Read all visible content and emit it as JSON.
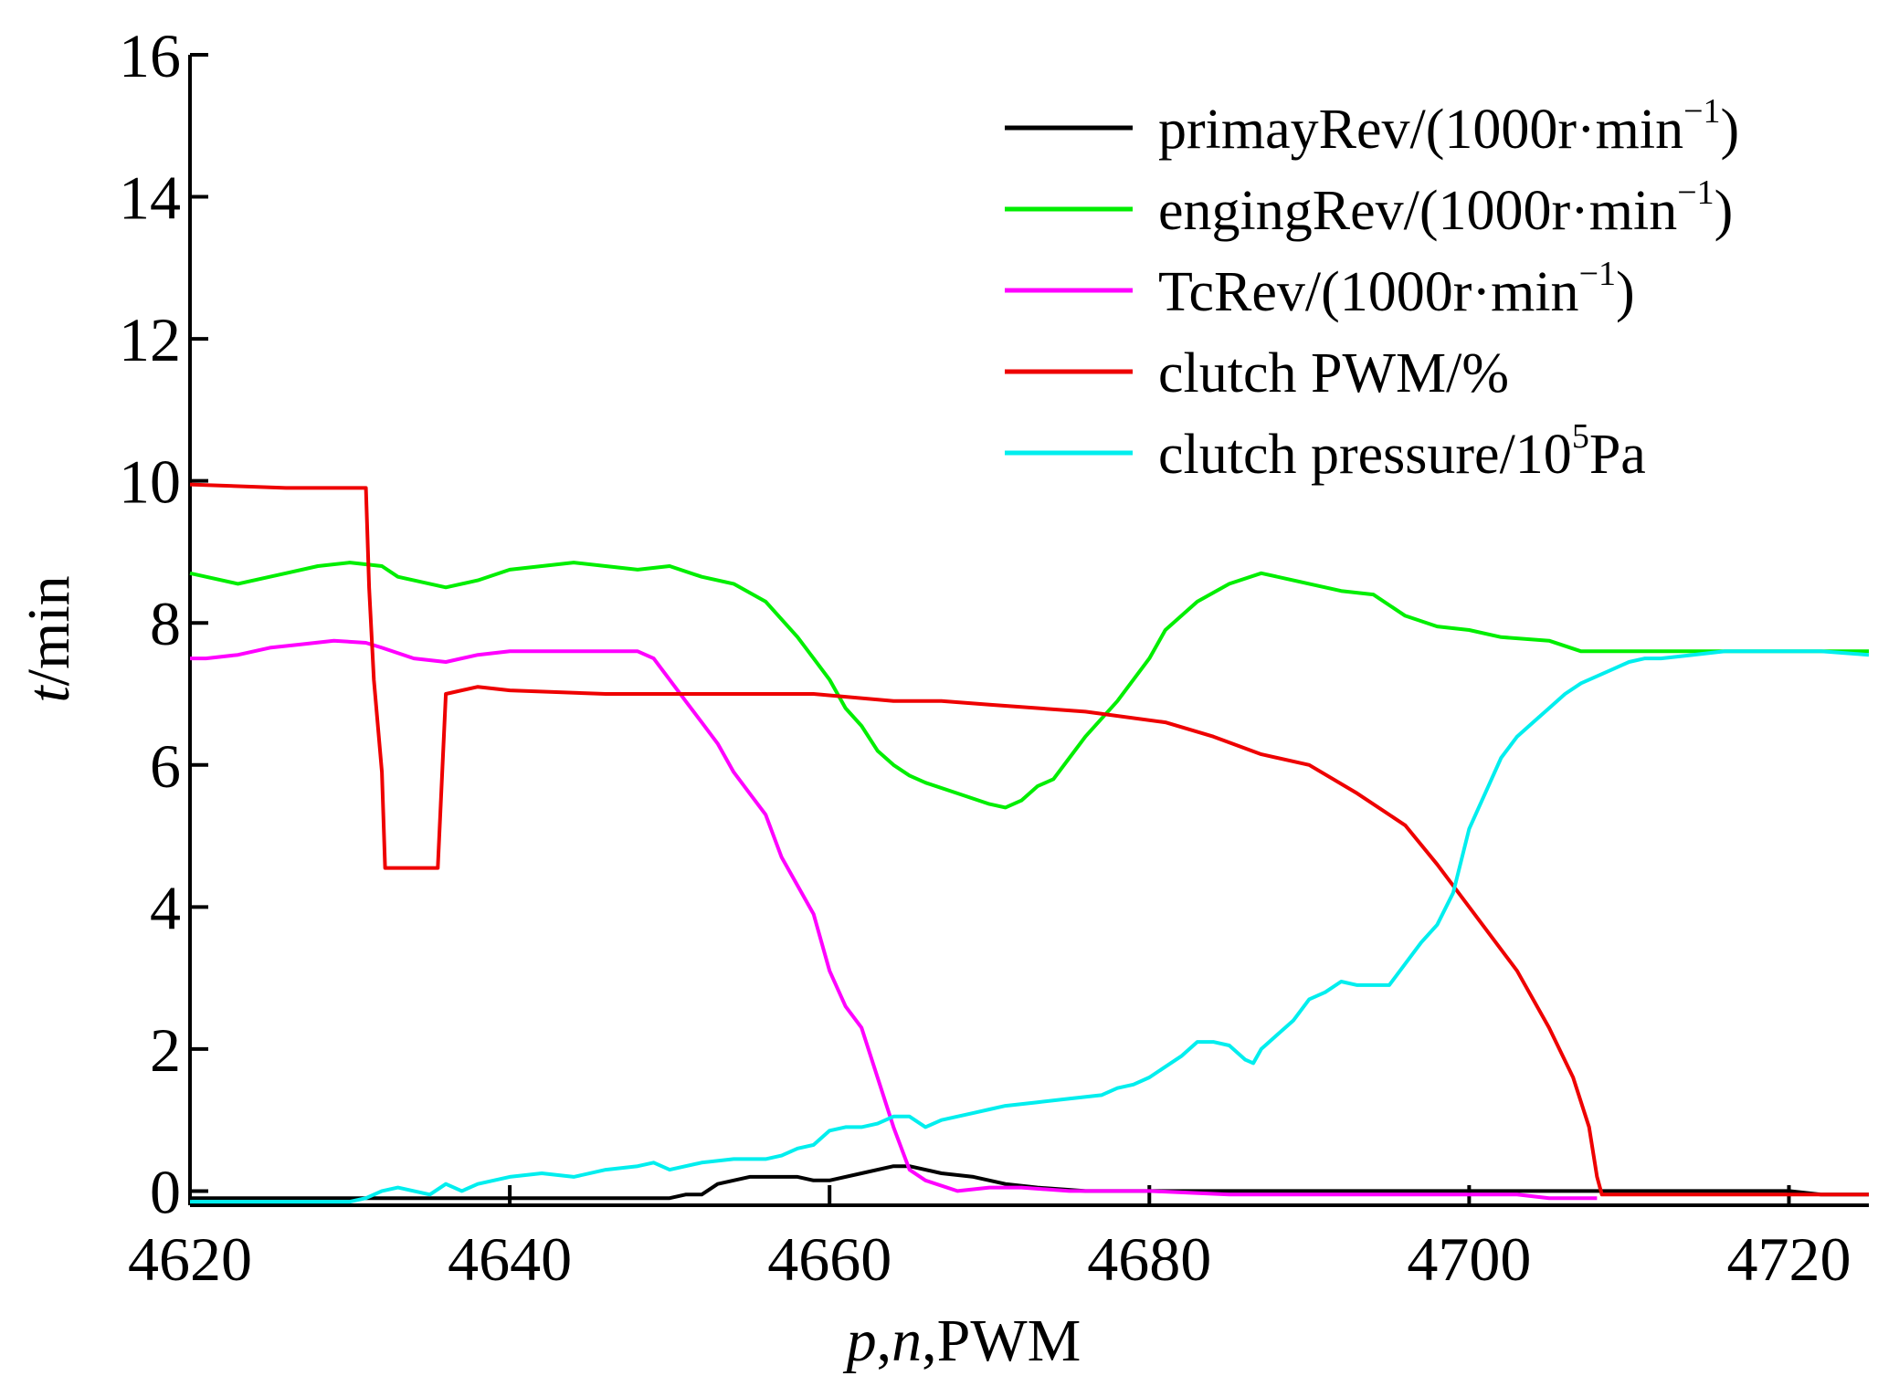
{
  "chart_data": {
    "type": "line",
    "title": "",
    "xlabel": "p,n,PWM",
    "ylabel": "t/min",
    "xlabel_parts": {
      "p": "p",
      "sep1": ",",
      "n": "n",
      "sep2": ",",
      "rest": "PWM"
    },
    "ylabel_parts": {
      "t": "t",
      "rest": "/min"
    },
    "xlim": [
      4620,
      4725
    ],
    "ylim": [
      -0.2,
      16
    ],
    "xticks": [
      4620,
      4640,
      4660,
      4680,
      4700,
      4720
    ],
    "yticks": [
      0,
      2,
      4,
      6,
      8,
      10,
      12,
      14,
      16
    ],
    "legend_position": "top-right",
    "series": [
      {
        "name": "primayRev/(1000r·min−1)",
        "legend": {
          "prefix": "primayRev/(1000r·min",
          "sup": "−1",
          "suffix": ")"
        },
        "color": "#000000",
        "points": [
          [
            4620,
            -0.1
          ],
          [
            4650,
            -0.1
          ],
          [
            4651,
            -0.05
          ],
          [
            4652,
            -0.05
          ],
          [
            4653,
            0.1
          ],
          [
            4655,
            0.2
          ],
          [
            4658,
            0.2
          ],
          [
            4659,
            0.15
          ],
          [
            4660,
            0.15
          ],
          [
            4662,
            0.25
          ],
          [
            4664,
            0.35
          ],
          [
            4665,
            0.35
          ],
          [
            4667,
            0.25
          ],
          [
            4669,
            0.2
          ],
          [
            4671,
            0.1
          ],
          [
            4673,
            0.05
          ],
          [
            4676,
            0.0
          ],
          [
            4720,
            0.0
          ],
          [
            4722,
            -0.05
          ],
          [
            4725,
            -0.05
          ]
        ]
      },
      {
        "name": "engingRev/(1000r·min−1)",
        "legend": {
          "prefix": "engingRev/(1000r·min",
          "sup": "−1",
          "suffix": ")"
        },
        "color": "#00ee00",
        "points": [
          [
            4620,
            8.7
          ],
          [
            4623,
            8.55
          ],
          [
            4626,
            8.7
          ],
          [
            4628,
            8.8
          ],
          [
            4630,
            8.85
          ],
          [
            4632,
            8.8
          ],
          [
            4633,
            8.65
          ],
          [
            4634,
            8.6
          ],
          [
            4636,
            8.5
          ],
          [
            4638,
            8.6
          ],
          [
            4640,
            8.75
          ],
          [
            4642,
            8.8
          ],
          [
            4644,
            8.85
          ],
          [
            4646,
            8.8
          ],
          [
            4648,
            8.75
          ],
          [
            4650,
            8.8
          ],
          [
            4652,
            8.65
          ],
          [
            4654,
            8.55
          ],
          [
            4656,
            8.3
          ],
          [
            4658,
            7.8
          ],
          [
            4659,
            7.5
          ],
          [
            4660,
            7.2
          ],
          [
            4661,
            6.8
          ],
          [
            4662,
            6.55
          ],
          [
            4663,
            6.2
          ],
          [
            4664,
            6.0
          ],
          [
            4665,
            5.85
          ],
          [
            4666,
            5.75
          ],
          [
            4668,
            5.6
          ],
          [
            4670,
            5.45
          ],
          [
            4671,
            5.4
          ],
          [
            4672,
            5.5
          ],
          [
            4673,
            5.7
          ],
          [
            4674,
            5.8
          ],
          [
            4675,
            6.1
          ],
          [
            4676,
            6.4
          ],
          [
            4678,
            6.9
          ],
          [
            4680,
            7.5
          ],
          [
            4681,
            7.9
          ],
          [
            4683,
            8.3
          ],
          [
            4685,
            8.55
          ],
          [
            4687,
            8.7
          ],
          [
            4690,
            8.55
          ],
          [
            4692,
            8.45
          ],
          [
            4694,
            8.4
          ],
          [
            4696,
            8.1
          ],
          [
            4698,
            7.95
          ],
          [
            4700,
            7.9
          ],
          [
            4702,
            7.8
          ],
          [
            4705,
            7.75
          ],
          [
            4707,
            7.6
          ],
          [
            4708,
            7.6
          ],
          [
            4710,
            7.6
          ],
          [
            4725,
            7.6
          ]
        ]
      },
      {
        "name": "TcRev/(1000r·min−1)",
        "legend": {
          "prefix": "TcRev/(1000r·min",
          "sup": "−1",
          "suffix": ")"
        },
        "color": "#ff00ff",
        "points": [
          [
            4620,
            7.5
          ],
          [
            4621,
            7.5
          ],
          [
            4623,
            7.55
          ],
          [
            4625,
            7.65
          ],
          [
            4627,
            7.7
          ],
          [
            4629,
            7.75
          ],
          [
            4631,
            7.72
          ],
          [
            4632,
            7.65
          ],
          [
            4634,
            7.5
          ],
          [
            4636,
            7.45
          ],
          [
            4638,
            7.55
          ],
          [
            4640,
            7.6
          ],
          [
            4644,
            7.6
          ],
          [
            4648,
            7.6
          ],
          [
            4649,
            7.5
          ],
          [
            4650,
            7.2
          ],
          [
            4651,
            6.9
          ],
          [
            4652,
            6.6
          ],
          [
            4653,
            6.3
          ],
          [
            4654,
            5.9
          ],
          [
            4655,
            5.6
          ],
          [
            4656,
            5.3
          ],
          [
            4657,
            4.7
          ],
          [
            4658,
            4.3
          ],
          [
            4659,
            3.9
          ],
          [
            4660,
            3.1
          ],
          [
            4661,
            2.6
          ],
          [
            4662,
            2.3
          ],
          [
            4663,
            1.6
          ],
          [
            4664,
            0.9
          ],
          [
            4665,
            0.3
          ],
          [
            4666,
            0.15
          ],
          [
            4668,
            0.0
          ],
          [
            4670,
            0.05
          ],
          [
            4672,
            0.05
          ],
          [
            4675,
            0.0
          ],
          [
            4680,
            0.0
          ],
          [
            4685,
            -0.05
          ],
          [
            4695,
            -0.05
          ],
          [
            4703,
            -0.05
          ],
          [
            4705,
            -0.1
          ],
          [
            4707,
            -0.1
          ],
          [
            4708,
            -0.1
          ]
        ]
      },
      {
        "name": "clutch PWM/%",
        "legend": {
          "prefix": "clutch PWM/%",
          "sup": "",
          "suffix": ""
        },
        "color": "#ee0000",
        "points": [
          [
            4620,
            9.95
          ],
          [
            4626,
            9.9
          ],
          [
            4631,
            9.9
          ],
          [
            4631.2,
            8.5
          ],
          [
            4631.5,
            7.2
          ],
          [
            4632,
            5.9
          ],
          [
            4632.2,
            4.55
          ],
          [
            4635.5,
            4.55
          ],
          [
            4636,
            7.0
          ],
          [
            4638,
            7.1
          ],
          [
            4640,
            7.05
          ],
          [
            4646,
            7.0
          ],
          [
            4650,
            7.0
          ],
          [
            4659,
            7.0
          ],
          [
            4664,
            6.9
          ],
          [
            4667,
            6.9
          ],
          [
            4670,
            6.85
          ],
          [
            4676,
            6.75
          ],
          [
            4681,
            6.6
          ],
          [
            4684,
            6.4
          ],
          [
            4687,
            6.15
          ],
          [
            4690,
            6.0
          ],
          [
            4693,
            5.6
          ],
          [
            4696,
            5.15
          ],
          [
            4698,
            4.6
          ],
          [
            4700,
            4.0
          ],
          [
            4703,
            3.1
          ],
          [
            4705,
            2.3
          ],
          [
            4706.5,
            1.6
          ],
          [
            4707.5,
            0.9
          ],
          [
            4708,
            0.2
          ],
          [
            4708.3,
            -0.05
          ],
          [
            4720,
            -0.05
          ],
          [
            4725,
            -0.05
          ]
        ]
      },
      {
        "name": "clutch pressure/105Pa",
        "legend": {
          "prefix": "clutch pressure/10",
          "sup": "5",
          "suffix": "Pa"
        },
        "color": "#00eeee",
        "points": [
          [
            4620,
            -0.15
          ],
          [
            4630,
            -0.15
          ],
          [
            4631,
            -0.1
          ],
          [
            4632,
            0.0
          ],
          [
            4633,
            0.05
          ],
          [
            4634,
            0.0
          ],
          [
            4635,
            -0.05
          ],
          [
            4636,
            0.1
          ],
          [
            4637,
            0.0
          ],
          [
            4638,
            0.1
          ],
          [
            4640,
            0.2
          ],
          [
            4642,
            0.25
          ],
          [
            4644,
            0.2
          ],
          [
            4646,
            0.3
          ],
          [
            4648,
            0.35
          ],
          [
            4649,
            0.4
          ],
          [
            4650,
            0.3
          ],
          [
            4652,
            0.4
          ],
          [
            4654,
            0.45
          ],
          [
            4656,
            0.45
          ],
          [
            4657,
            0.5
          ],
          [
            4658,
            0.6
          ],
          [
            4659,
            0.65
          ],
          [
            4660,
            0.85
          ],
          [
            4661,
            0.9
          ],
          [
            4662,
            0.9
          ],
          [
            4663,
            0.95
          ],
          [
            4664,
            1.05
          ],
          [
            4665,
            1.05
          ],
          [
            4666,
            0.9
          ],
          [
            4667,
            1.0
          ],
          [
            4668,
            1.05
          ],
          [
            4669,
            1.1
          ],
          [
            4670,
            1.15
          ],
          [
            4671,
            1.2
          ],
          [
            4673,
            1.25
          ],
          [
            4675,
            1.3
          ],
          [
            4677,
            1.35
          ],
          [
            4678,
            1.45
          ],
          [
            4679,
            1.5
          ],
          [
            4680,
            1.6
          ],
          [
            4681,
            1.75
          ],
          [
            4682,
            1.9
          ],
          [
            4683,
            2.1
          ],
          [
            4684,
            2.1
          ],
          [
            4685,
            2.05
          ],
          [
            4686,
            1.85
          ],
          [
            4686.5,
            1.8
          ],
          [
            4687,
            2.0
          ],
          [
            4688,
            2.2
          ],
          [
            4689,
            2.4
          ],
          [
            4690,
            2.7
          ],
          [
            4691,
            2.8
          ],
          [
            4692,
            2.95
          ],
          [
            4693,
            2.9
          ],
          [
            4694,
            2.9
          ],
          [
            4695,
            2.9
          ],
          [
            4696,
            3.2
          ],
          [
            4697,
            3.5
          ],
          [
            4698,
            3.75
          ],
          [
            4699,
            4.2
          ],
          [
            4700,
            5.1
          ],
          [
            4701,
            5.6
          ],
          [
            4702,
            6.1
          ],
          [
            4703,
            6.4
          ],
          [
            4704,
            6.6
          ],
          [
            4705,
            6.8
          ],
          [
            4706,
            7.0
          ],
          [
            4707,
            7.15
          ],
          [
            4708,
            7.25
          ],
          [
            4709,
            7.35
          ],
          [
            4710,
            7.45
          ],
          [
            4711,
            7.5
          ],
          [
            4712,
            7.5
          ],
          [
            4714,
            7.55
          ],
          [
            4716,
            7.6
          ],
          [
            4718,
            7.6
          ],
          [
            4720,
            7.6
          ],
          [
            4722,
            7.6
          ],
          [
            4725,
            7.55
          ]
        ]
      }
    ]
  }
}
